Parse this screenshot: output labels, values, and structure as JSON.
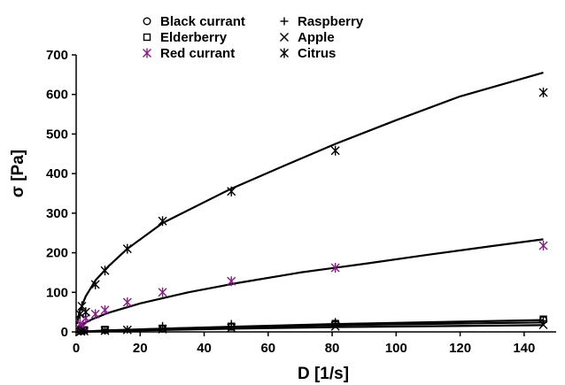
{
  "chart_data": {
    "type": "scatter",
    "xlabel": "D [1/s]",
    "ylabel": "σ [Pa]",
    "xlim": [
      0,
      150
    ],
    "ylim": [
      0,
      700
    ],
    "xticks": [
      0,
      20,
      40,
      60,
      80,
      100,
      120,
      140
    ],
    "yticks": [
      0,
      100,
      200,
      300,
      400,
      500,
      600,
      700
    ],
    "legend_position": "top",
    "series": [
      {
        "name": "Black currant",
        "marker": "circle",
        "color": "#000000",
        "x": [
          1.5,
          2.5,
          9,
          27,
          48.5,
          81,
          146
        ],
        "y": [
          2,
          4,
          5,
          8,
          13,
          20,
          30
        ],
        "fit": [
          [
            0,
            0
          ],
          [
            10,
            4
          ],
          [
            27,
            8
          ],
          [
            48,
            13
          ],
          [
            81,
            20
          ],
          [
            146,
            30
          ]
        ]
      },
      {
        "name": "Elderberry",
        "marker": "square",
        "color": "#000000",
        "x": [
          1.5,
          2.5,
          9,
          27,
          48.5,
          81,
          146
        ],
        "y": [
          3,
          5,
          6,
          9,
          14,
          21,
          32
        ],
        "fit": []
      },
      {
        "name": "Red currant",
        "marker": "asterisk",
        "color": "#8b1a8b",
        "x": [
          1.2,
          2.2,
          3,
          6,
          9,
          16,
          27,
          48.5,
          81,
          146
        ],
        "y": [
          20,
          15,
          35,
          45,
          55,
          75,
          100,
          128,
          162,
          218
        ],
        "fit": [
          [
            0,
            8
          ],
          [
            2,
            20
          ],
          [
            5,
            32
          ],
          [
            10,
            48
          ],
          [
            20,
            72
          ],
          [
            35,
            100
          ],
          [
            50,
            123
          ],
          [
            70,
            150
          ],
          [
            90,
            172
          ],
          [
            110,
            195
          ],
          [
            130,
            217
          ],
          [
            146,
            234
          ]
        ]
      },
      {
        "name": "Raspberry",
        "marker": "plus",
        "color": "#000000",
        "x": [
          1.5,
          2.5,
          9,
          16,
          27,
          48.5,
          81,
          146
        ],
        "y": [
          1,
          2,
          3,
          6,
          15,
          20,
          25,
          28
        ],
        "fit": [
          [
            0,
            0
          ],
          [
            10,
            3
          ],
          [
            27,
            8
          ],
          [
            48,
            12
          ],
          [
            81,
            17
          ],
          [
            146,
            24
          ]
        ]
      },
      {
        "name": "Apple",
        "marker": "x",
        "color": "#000000",
        "x": [
          1.5,
          2.5,
          9,
          16,
          27,
          48.5,
          81,
          146
        ],
        "y": [
          1,
          2,
          3,
          5,
          7,
          10,
          14,
          18
        ],
        "fit": [
          [
            0,
            0
          ],
          [
            10,
            2
          ],
          [
            27,
            5
          ],
          [
            48,
            8
          ],
          [
            81,
            12
          ],
          [
            146,
            17
          ]
        ]
      },
      {
        "name": "Citrus",
        "marker": "asterisk",
        "color": "#000000",
        "x": [
          1.2,
          1.8,
          3,
          6,
          9,
          16,
          27,
          48.5,
          81,
          146
        ],
        "y": [
          45,
          65,
          50,
          120,
          155,
          210,
          280,
          355,
          458,
          605
        ],
        "fit": [
          [
            0.3,
            20
          ],
          [
            1,
            50
          ],
          [
            3,
            90
          ],
          [
            6,
            130
          ],
          [
            10,
            165
          ],
          [
            16,
            210
          ],
          [
            27,
            275
          ],
          [
            48,
            360
          ],
          [
            65,
            420
          ],
          [
            81,
            475
          ],
          [
            100,
            535
          ],
          [
            120,
            595
          ],
          [
            146,
            655
          ]
        ]
      }
    ]
  }
}
